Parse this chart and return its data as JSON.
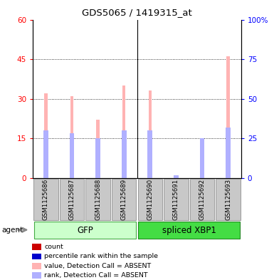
{
  "title": "GDS5065 / 1419315_at",
  "samples": [
    "GSM1125686",
    "GSM1125687",
    "GSM1125688",
    "GSM1125689",
    "GSM1125690",
    "GSM1125691",
    "GSM1125692",
    "GSM1125693"
  ],
  "absent_value": [
    32,
    31,
    22,
    35,
    33,
    1,
    14,
    46
  ],
  "absent_rank": [
    18,
    17,
    15,
    18,
    18,
    1,
    15,
    19
  ],
  "present_value": [
    0,
    0,
    0,
    0,
    0,
    0,
    0,
    0
  ],
  "present_rank": [
    0,
    0,
    0,
    0,
    0,
    0,
    0,
    0
  ],
  "ylim_left": [
    0,
    60
  ],
  "ylim_right": [
    0,
    100
  ],
  "yticks_left": [
    0,
    15,
    30,
    45,
    60
  ],
  "yticks_right": [
    0,
    25,
    50,
    75,
    100
  ],
  "ytick_labels_left": [
    "0",
    "15",
    "30",
    "45",
    "60"
  ],
  "ytick_labels_right": [
    "0",
    "25",
    "50",
    "75",
    "100%"
  ],
  "color_absent_value": "#ffb3b3",
  "color_absent_rank": "#b0b0ff",
  "color_present_value": "#cc0000",
  "color_present_rank": "#0000cc",
  "sample_bg": "#c8c8c8",
  "bar_width": 0.12,
  "rank_marker_size": 0.18,
  "agent_label": "agent",
  "group_labels": [
    "GFP",
    "spliced XBP1"
  ],
  "group_colors": [
    "#ccffcc",
    "#44dd44"
  ],
  "group_edge_colors": [
    "#44aa44",
    "#228822"
  ],
  "group_ranges": [
    [
      0,
      3
    ],
    [
      4,
      7
    ]
  ],
  "legend_items": [
    {
      "color": "#cc0000",
      "label": "count"
    },
    {
      "color": "#0000cc",
      "label": "percentile rank within the sample"
    },
    {
      "color": "#ffb3b3",
      "label": "value, Detection Call = ABSENT"
    },
    {
      "color": "#b0b0ff",
      "label": "rank, Detection Call = ABSENT"
    }
  ]
}
